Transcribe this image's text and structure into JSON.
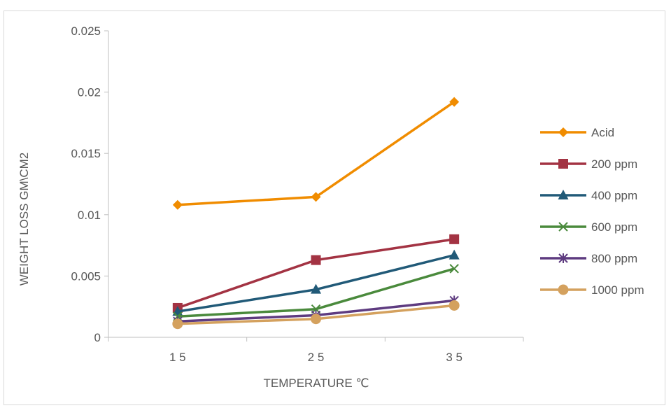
{
  "chart_data": {
    "type": "line",
    "title": "",
    "xlabel": "TEMPERATURE ℃",
    "ylabel": "WEIGHT LOSS GM\\CM2",
    "categories": [
      "1 5",
      "2 5",
      "3 5"
    ],
    "x": [
      15,
      25,
      35
    ],
    "ylim": [
      0,
      0.025
    ],
    "yticks": [
      0,
      0.005,
      0.01,
      0.015,
      0.02,
      0.025
    ],
    "ytick_labels": [
      "0",
      "0.005",
      "0.01",
      "0.015",
      "0.02",
      "0.025"
    ],
    "grid": false,
    "legend_position": "right",
    "series": [
      {
        "name": "Acid",
        "color": "#f08c00",
        "marker": "diamond",
        "values": [
          0.0108,
          0.01145,
          0.0192
        ]
      },
      {
        "name": "200 ppm",
        "color": "#a33343",
        "marker": "square",
        "values": [
          0.0024,
          0.0063,
          0.008
        ]
      },
      {
        "name": "400 ppm",
        "color": "#215a78",
        "marker": "triangle",
        "values": [
          0.0021,
          0.0039,
          0.0067
        ]
      },
      {
        "name": "600 ppm",
        "color": "#4a8a3c",
        "marker": "x",
        "values": [
          0.0017,
          0.0023,
          0.0056
        ]
      },
      {
        "name": "800 ppm",
        "color": "#5e3b80",
        "marker": "star",
        "values": [
          0.0013,
          0.0018,
          0.003
        ]
      },
      {
        "name": "1000 ppm",
        "color": "#d4a15e",
        "marker": "circle",
        "values": [
          0.0011,
          0.0015,
          0.0026
        ]
      }
    ]
  }
}
